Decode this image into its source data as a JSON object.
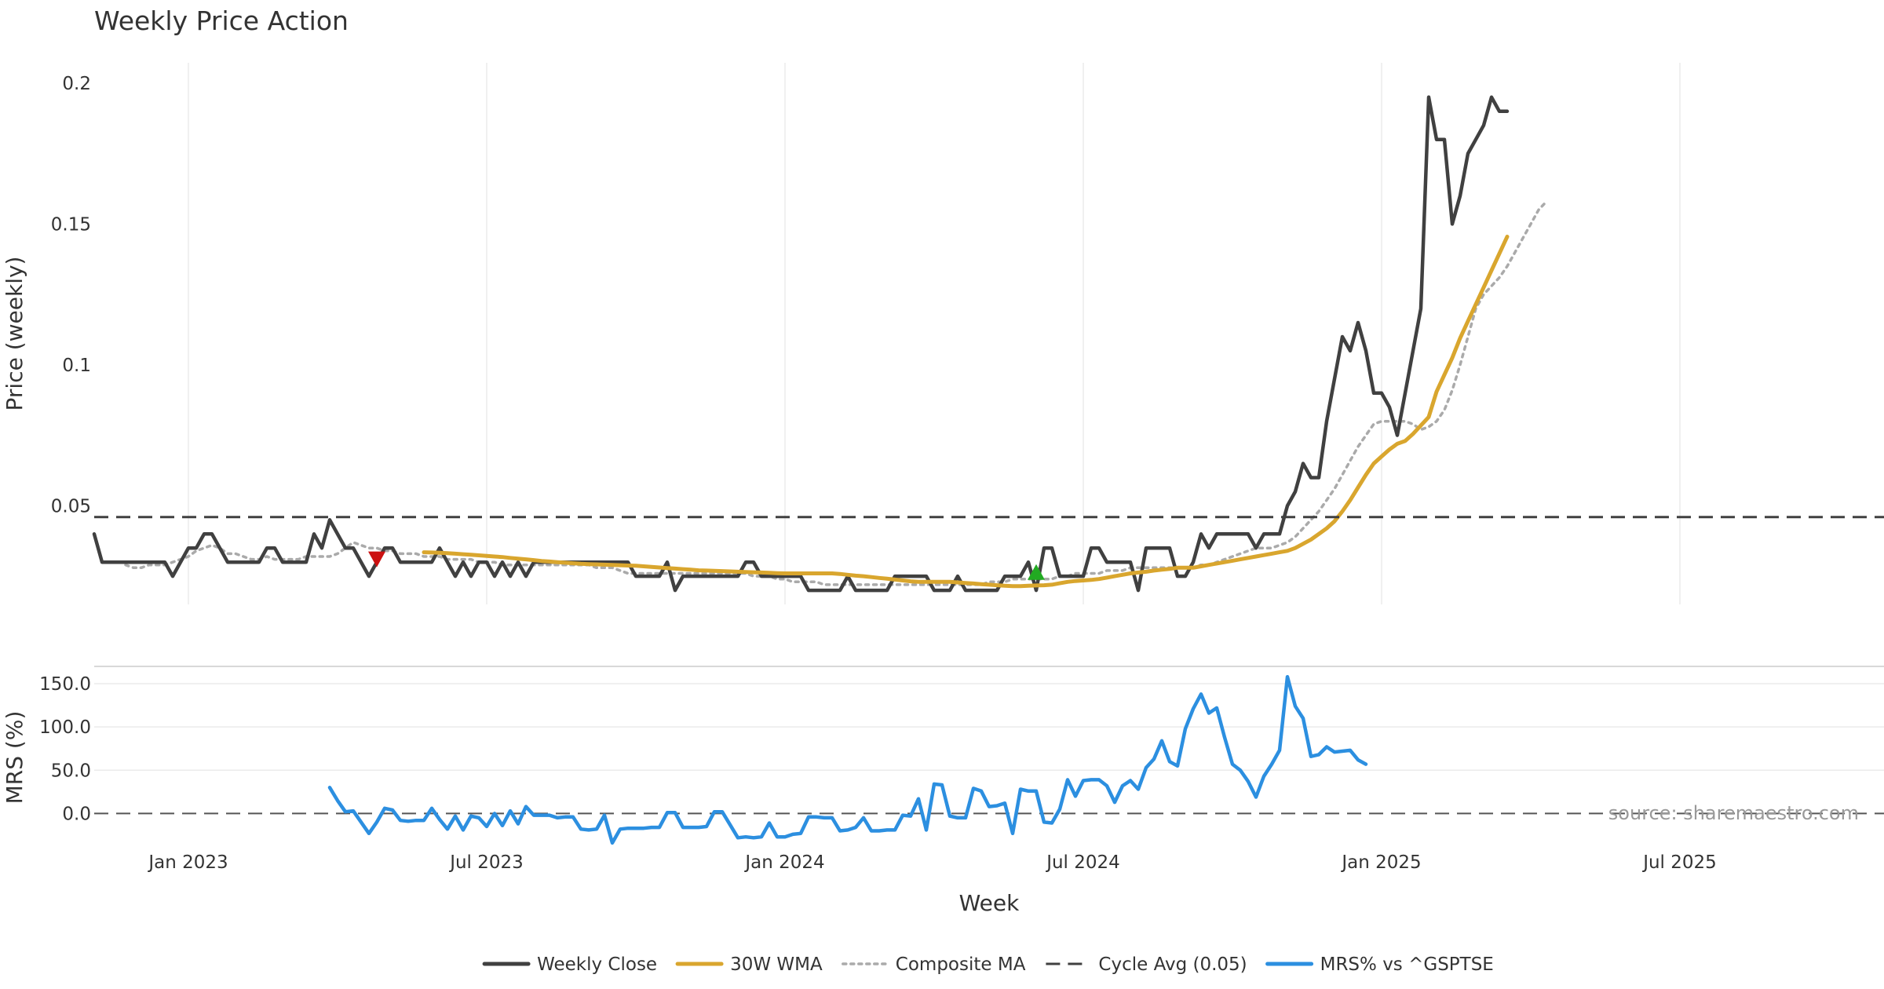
{
  "chart_data": {
    "type": "line",
    "title": "Weekly Price Action",
    "xlabel": "Week",
    "x_tick_labels": [
      "Jan 2023",
      "Jul 2023",
      "Jan 2024",
      "Jul 2024",
      "Jan 2025",
      "Jul 2025"
    ],
    "x_tick_weeks": [
      12,
      50,
      88,
      126,
      164,
      202
    ],
    "price_panel": {
      "ylabel": "Price (weekly)",
      "ylim": [
        0.015,
        0.21
      ],
      "y_ticks": [
        0.05,
        0.1,
        0.15,
        0.2
      ],
      "y_tick_labels": [
        "0.05",
        "0.1",
        "0.15",
        "0.2"
      ],
      "series": [
        {
          "name": "Weekly Close",
          "color": "#404040",
          "style": "solid",
          "values": [
            0.04,
            0.03,
            0.03,
            0.03,
            0.03,
            0.03,
            0.03,
            0.03,
            0.03,
            0.03,
            0.025,
            0.03,
            0.035,
            0.035,
            0.04,
            0.04,
            0.035,
            0.03,
            0.03,
            0.03,
            0.03,
            0.03,
            0.035,
            0.035,
            0.03,
            0.03,
            0.03,
            0.03,
            0.04,
            0.035,
            0.045,
            0.04,
            0.035,
            0.035,
            0.03,
            0.025,
            0.03,
            0.035,
            0.035,
            0.03,
            0.03,
            0.03,
            0.03,
            0.03,
            0.035,
            0.03,
            0.025,
            0.03,
            0.025,
            0.03,
            0.03,
            0.025,
            0.03,
            0.025,
            0.03,
            0.025,
            0.03,
            0.03,
            0.03,
            0.03,
            0.03,
            0.03,
            0.03,
            0.03,
            0.03,
            0.03,
            0.03,
            0.03,
            0.03,
            0.025,
            0.025,
            0.025,
            0.025,
            0.03,
            0.02,
            0.025,
            0.025,
            0.025,
            0.025,
            0.025,
            0.025,
            0.025,
            0.025,
            0.03,
            0.03,
            0.025,
            0.025,
            0.025,
            0.025,
            0.025,
            0.025,
            0.02,
            0.02,
            0.02,
            0.02,
            0.02,
            0.025,
            0.02,
            0.02,
            0.02,
            0.02,
            0.02,
            0.025,
            0.025,
            0.025,
            0.025,
            0.025,
            0.02,
            0.02,
            0.02,
            0.025,
            0.02,
            0.02,
            0.02,
            0.02,
            0.02,
            0.025,
            0.025,
            0.025,
            0.03,
            0.02,
            0.035,
            0.035,
            0.025,
            0.025,
            0.025,
            0.025,
            0.035,
            0.035,
            0.03,
            0.03,
            0.03,
            0.03,
            0.02,
            0.035,
            0.035,
            0.035,
            0.035,
            0.025,
            0.025,
            0.03,
            0.04,
            0.035,
            0.04,
            0.04,
            0.04,
            0.04,
            0.04,
            0.035,
            0.04,
            0.04,
            0.04,
            0.05,
            0.055,
            0.065,
            0.06,
            0.06,
            0.08,
            0.095,
            0.11,
            0.105,
            0.115,
            0.105,
            0.09,
            0.09,
            0.085,
            0.075,
            0.09,
            0.105,
            0.12,
            0.195,
            0.18,
            0.18,
            0.15,
            0.16,
            0.175,
            0.18,
            0.185,
            0.195,
            0.19,
            0.19
          ]
        },
        {
          "name": "30W WMA",
          "color": "#D9A62E",
          "style": "solid",
          "start_week": 42,
          "values": [
            0.0335,
            0.0334,
            0.0333,
            0.0332,
            0.033,
            0.0328,
            0.0326,
            0.0324,
            0.0322,
            0.032,
            0.0318,
            0.0315,
            0.0312,
            0.031,
            0.0307,
            0.0304,
            0.0302,
            0.03,
            0.0298,
            0.0296,
            0.0294,
            0.0293,
            0.0292,
            0.0291,
            0.029,
            0.0289,
            0.0288,
            0.0287,
            0.0285,
            0.0283,
            0.0281,
            0.0279,
            0.0277,
            0.0275,
            0.0273,
            0.0271,
            0.027,
            0.0269,
            0.0268,
            0.0267,
            0.0266,
            0.0265,
            0.0264,
            0.0263,
            0.0262,
            0.0261,
            0.026,
            0.026,
            0.026,
            0.026,
            0.026,
            0.026,
            0.026,
            0.0258,
            0.0255,
            0.0252,
            0.025,
            0.0247,
            0.0244,
            0.0241,
            0.0238,
            0.0235,
            0.0232,
            0.023,
            0.023,
            0.023,
            0.023,
            0.023,
            0.0228,
            0.0226,
            0.0224,
            0.0222,
            0.022,
            0.0218,
            0.0216,
            0.0215,
            0.0215,
            0.0216,
            0.0217,
            0.0218,
            0.022,
            0.0225,
            0.023,
            0.0233,
            0.0235,
            0.0237,
            0.024,
            0.0245,
            0.025,
            0.0255,
            0.026,
            0.0263,
            0.0266,
            0.027,
            0.0273,
            0.0276,
            0.028,
            0.028,
            0.028,
            0.0285,
            0.029,
            0.0295,
            0.03,
            0.0305,
            0.031,
            0.0315,
            0.032,
            0.0325,
            0.033,
            0.0335,
            0.034,
            0.035,
            0.0365,
            0.038,
            0.04,
            0.042,
            0.0445,
            0.048,
            0.052,
            0.0565,
            0.061,
            0.065,
            0.0675,
            0.07,
            0.072,
            0.073,
            0.0755,
            0.0785,
            0.0815,
            0.0905,
            0.0965,
            0.1025,
            0.1095,
            0.1155,
            0.1215,
            0.1275,
            0.1335,
            0.1395,
            0.1455
          ]
        },
        {
          "name": "Composite MA",
          "color": "#AAAAAA",
          "style": "dotted",
          "start_week": 4,
          "values": [
            0.029,
            0.028,
            0.028,
            0.029,
            0.029,
            0.029,
            0.03,
            0.031,
            0.032,
            0.034,
            0.035,
            0.036,
            0.035,
            0.033,
            0.033,
            0.032,
            0.031,
            0.031,
            0.032,
            0.031,
            0.031,
            0.031,
            0.031,
            0.032,
            0.032,
            0.032,
            0.032,
            0.033,
            0.035,
            0.037,
            0.036,
            0.035,
            0.035,
            0.034,
            0.034,
            0.033,
            0.033,
            0.033,
            0.032,
            0.032,
            0.032,
            0.031,
            0.031,
            0.031,
            0.031,
            0.03,
            0.03,
            0.03,
            0.029,
            0.029,
            0.029,
            0.029,
            0.029,
            0.029,
            0.029,
            0.029,
            0.029,
            0.029,
            0.029,
            0.029,
            0.028,
            0.028,
            0.028,
            0.027,
            0.026,
            0.026,
            0.026,
            0.026,
            0.026,
            0.026,
            0.026,
            0.026,
            0.026,
            0.026,
            0.026,
            0.026,
            0.026,
            0.026,
            0.026,
            0.026,
            0.025,
            0.025,
            0.025,
            0.024,
            0.024,
            0.023,
            0.023,
            0.023,
            0.023,
            0.022,
            0.022,
            0.022,
            0.022,
            0.022,
            0.022,
            0.022,
            0.022,
            0.022,
            0.022,
            0.022,
            0.022,
            0.022,
            0.022,
            0.022,
            0.022,
            0.022,
            0.022,
            0.022,
            0.022,
            0.022,
            0.023,
            0.023,
            0.023,
            0.024,
            0.024,
            0.024,
            0.024,
            0.024,
            0.024,
            0.025,
            0.025,
            0.026,
            0.026,
            0.026,
            0.026,
            0.027,
            0.027,
            0.027,
            0.028,
            0.028,
            0.028,
            0.028,
            0.028,
            0.028,
            0.028,
            0.028,
            0.028,
            0.029,
            0.029,
            0.03,
            0.031,
            0.032,
            0.033,
            0.034,
            0.035,
            0.035,
            0.035,
            0.036,
            0.037,
            0.039,
            0.042,
            0.045,
            0.048,
            0.052,
            0.056,
            0.061,
            0.066,
            0.071,
            0.075,
            0.079,
            0.08,
            0.08,
            0.08,
            0.08,
            0.079,
            0.077,
            0.078,
            0.08,
            0.084,
            0.091,
            0.1,
            0.11,
            0.12,
            0.125,
            0.128,
            0.131,
            0.135,
            0.14,
            0.145,
            0.15,
            0.155,
            0.158
          ]
        },
        {
          "name": "Cycle Avg (0.05)",
          "color": "#404040",
          "style": "dashed",
          "constant": 0.046
        }
      ],
      "markers": [
        {
          "type": "sell",
          "week": 36,
          "value": 0.031,
          "color": "#CC1111"
        },
        {
          "type": "buy",
          "week": 120,
          "value": 0.0265,
          "color": "#22AA22"
        }
      ]
    },
    "mrs_panel": {
      "ylabel": "MRS (%)",
      "ylim": [
        -35,
        170
      ],
      "y_ticks": [
        0,
        50,
        100,
        150
      ],
      "y_tick_labels": [
        "0.0",
        "50.0",
        "100.0",
        "150.0"
      ],
      "zero_line": 0,
      "series": [
        {
          "name": "MRS% vs ^GSPTSE",
          "color": "#2C8FE0",
          "style": "solid",
          "start_week": 30,
          "values": [
            30,
            15,
            2,
            3,
            -10,
            -23,
            -10,
            6,
            4,
            -8,
            -9,
            -8,
            -8,
            6,
            -7,
            -18,
            -3,
            -19,
            -3,
            -5,
            -15,
            0,
            -14,
            3,
            -12,
            8,
            -2,
            -2,
            -2,
            -5,
            -4,
            -4,
            -18,
            -19,
            -18,
            -2,
            -34,
            -18,
            -17,
            -17,
            -17,
            -16,
            -16,
            1,
            1,
            -16,
            -16,
            -16,
            -15,
            2,
            2,
            -13,
            -28,
            -27,
            -28,
            -27,
            -11,
            -27,
            -27,
            -24,
            -23,
            -4,
            -4,
            -5,
            -5,
            -20,
            -19,
            -16,
            -5,
            -20,
            -20,
            -19,
            -19,
            -2,
            -3,
            17,
            -19,
            34,
            33,
            -3,
            -5,
            -5,
            29,
            26,
            8,
            9,
            12,
            -23,
            28,
            26,
            26,
            -10,
            -11,
            5,
            39,
            20,
            38,
            39,
            39,
            32,
            13,
            32,
            38,
            28,
            53,
            63,
            84,
            60,
            55,
            98,
            121,
            138,
            116,
            122,
            88,
            57,
            50,
            37,
            19,
            43,
            57,
            73,
            158,
            124,
            110,
            66,
            68,
            77,
            71,
            72,
            73,
            62,
            57
          ]
        }
      ]
    },
    "legend": [
      "Weekly Close",
      "30W WMA",
      "Composite MA",
      "Cycle Avg (0.05)",
      "MRS% vs ^GSPTSE"
    ],
    "legend_position": "bottom-center",
    "source_text": "source: sharemaestro.com"
  }
}
